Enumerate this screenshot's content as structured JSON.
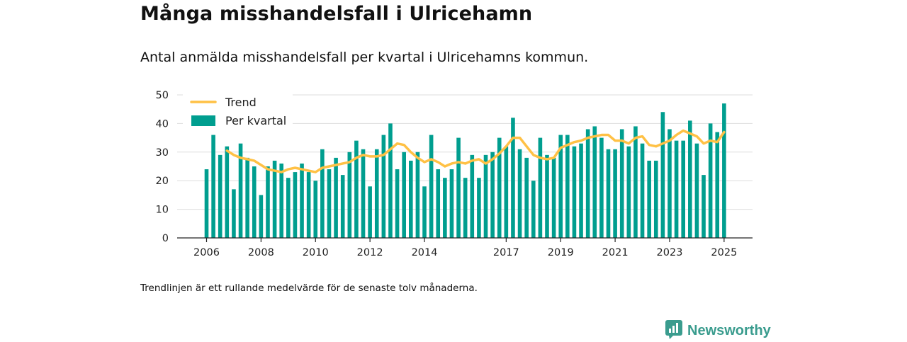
{
  "title": "Många misshandelsfall i Ulricehamn",
  "subtitle": "Antal anmälda misshandelsfall per kvartal i Ulricehamns kommun.",
  "footnote": "Trendlinjen är ett rullande medelvärde för de senaste tolv månaderna.",
  "brand": {
    "name": "Newsworthy",
    "icon": "newsworthy-logo-icon",
    "color": "#3a9c8e"
  },
  "colors": {
    "bar": "#009e8f",
    "trend": "#ffc145",
    "grid": "#dddddd",
    "axis": "#222222"
  },
  "chart_data": {
    "type": "bar",
    "title": "Många misshandelsfall i Ulricehamn",
    "xlabel": "",
    "ylabel": "",
    "ylim": [
      0,
      50
    ],
    "yticks": [
      0,
      10,
      20,
      30,
      40,
      50
    ],
    "xticks": [
      "2006",
      "2008",
      "2010",
      "2012",
      "2014",
      "2017",
      "2019",
      "2021",
      "2023",
      "2025"
    ],
    "grid": true,
    "legend_position": "top-left",
    "start_period": "2006 Q1",
    "end_period": "2025 Q1",
    "categories": [
      "2006 Q1",
      "2006 Q2",
      "2006 Q3",
      "2006 Q4",
      "2007 Q1",
      "2007 Q2",
      "2007 Q3",
      "2007 Q4",
      "2008 Q1",
      "2008 Q2",
      "2008 Q3",
      "2008 Q4",
      "2009 Q1",
      "2009 Q2",
      "2009 Q3",
      "2009 Q4",
      "2010 Q1",
      "2010 Q2",
      "2010 Q3",
      "2010 Q4",
      "2011 Q1",
      "2011 Q2",
      "2011 Q3",
      "2011 Q4",
      "2012 Q1",
      "2012 Q2",
      "2012 Q3",
      "2012 Q4",
      "2013 Q1",
      "2013 Q2",
      "2013 Q3",
      "2013 Q4",
      "2014 Q1",
      "2014 Q2",
      "2014 Q3",
      "2014 Q4",
      "2015 Q1",
      "2015 Q2",
      "2015 Q3",
      "2015 Q4",
      "2016 Q1",
      "2016 Q2",
      "2016 Q3",
      "2016 Q4",
      "2017 Q1",
      "2017 Q2",
      "2017 Q3",
      "2017 Q4",
      "2018 Q1",
      "2018 Q2",
      "2018 Q3",
      "2018 Q4",
      "2019 Q1",
      "2019 Q2",
      "2019 Q3",
      "2019 Q4",
      "2020 Q1",
      "2020 Q2",
      "2020 Q3",
      "2020 Q4",
      "2021 Q1",
      "2021 Q2",
      "2021 Q3",
      "2021 Q4",
      "2022 Q1",
      "2022 Q2",
      "2022 Q3",
      "2022 Q4",
      "2023 Q1",
      "2023 Q2",
      "2023 Q3",
      "2023 Q4",
      "2024 Q1",
      "2024 Q2",
      "2024 Q3",
      "2024 Q4",
      "2025 Q1"
    ],
    "series": [
      {
        "name": "Per kvartal",
        "type": "bar",
        "values": [
          24,
          36,
          29,
          32,
          17,
          33,
          28,
          25,
          15,
          25,
          27,
          26,
          21,
          23,
          26,
          23,
          20,
          31,
          24,
          28,
          22,
          30,
          34,
          31,
          18,
          31,
          36,
          40,
          24,
          30,
          27,
          30,
          18,
          36,
          24,
          21,
          24,
          35,
          21,
          29,
          21,
          29,
          30,
          35,
          32,
          42,
          31,
          28,
          20,
          35,
          29,
          28,
          36,
          36,
          32,
          33,
          38,
          39,
          35,
          31,
          31,
          38,
          32,
          39,
          33,
          27,
          27,
          44,
          38,
          34,
          34,
          41,
          33,
          22,
          40,
          37,
          47
        ]
      },
      {
        "name": "Trend",
        "type": "line",
        "values": [
          null,
          null,
          null,
          30.5,
          29,
          28,
          27.5,
          27,
          25.5,
          24,
          23.5,
          23,
          24,
          24.5,
          24,
          23.5,
          23,
          24.5,
          25,
          25.5,
          26,
          26.5,
          28,
          29,
          28.5,
          28.5,
          29,
          31,
          33,
          32.5,
          30,
          28,
          26.5,
          27.5,
          26.5,
          25,
          26,
          26.5,
          26,
          27,
          27.5,
          26,
          27.5,
          29.5,
          32,
          35,
          35,
          32,
          29,
          28,
          27.5,
          28,
          31.5,
          32.5,
          33.5,
          34,
          35,
          35.5,
          36,
          36,
          34,
          34,
          33,
          35,
          35.5,
          32.5,
          32,
          33,
          34,
          36,
          37.5,
          36.5,
          35.5,
          33,
          34,
          33.5,
          37
        ]
      }
    ]
  }
}
